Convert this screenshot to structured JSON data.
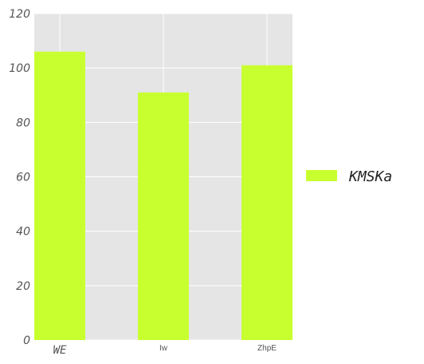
{
  "chart_data": {
    "type": "bar",
    "categories": [
      "WE",
      "Iw",
      "ZhpE"
    ],
    "series": [
      {
        "name": "KMSKa",
        "values": [
          106,
          91,
          101
        ],
        "color": "#c8ff2f"
      }
    ],
    "title": "",
    "xlabel": "",
    "ylabel": "",
    "ylim": [
      0,
      120
    ],
    "yticks": [
      0,
      20,
      40,
      60,
      80,
      100,
      120
    ],
    "grid": true,
    "legend_position": "right",
    "style": {
      "plot_background": "#e5e5e5",
      "grid_color": "#ffffff"
    }
  }
}
